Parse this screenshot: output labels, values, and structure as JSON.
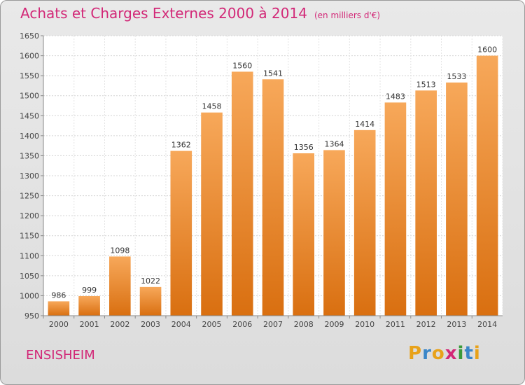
{
  "title": "Achats et Charges Externes 2000 à 2014",
  "unit_note": "(en milliers d'€)",
  "city": "ENSISHEIM",
  "logo": {
    "letters": [
      "P",
      "r",
      "o",
      "x",
      "i",
      "t",
      "i"
    ],
    "colors": [
      "#e8a21a",
      "#3a86c8",
      "#e8a21a",
      "#d22877",
      "#3a9a3a",
      "#3a86c8",
      "#e8a21a"
    ]
  },
  "colors": {
    "bar_top": "#f7a85a",
    "bar_bottom": "#d96f10",
    "accent": "#d22877"
  },
  "chart_data": {
    "type": "bar",
    "categories": [
      "2000",
      "2001",
      "2002",
      "2003",
      "2004",
      "2005",
      "2006",
      "2007",
      "2008",
      "2009",
      "2010",
      "2011",
      "2012",
      "2013",
      "2014"
    ],
    "values": [
      986,
      999,
      1098,
      1022,
      1362,
      1458,
      1560,
      1541,
      1356,
      1364,
      1414,
      1483,
      1513,
      1533,
      1600
    ],
    "ylim": [
      950,
      1650
    ],
    "yticks": [
      950,
      1000,
      1050,
      1100,
      1150,
      1200,
      1250,
      1300,
      1350,
      1400,
      1450,
      1500,
      1550,
      1600,
      1650
    ],
    "grid": true,
    "xlabel": "",
    "ylabel": ""
  }
}
